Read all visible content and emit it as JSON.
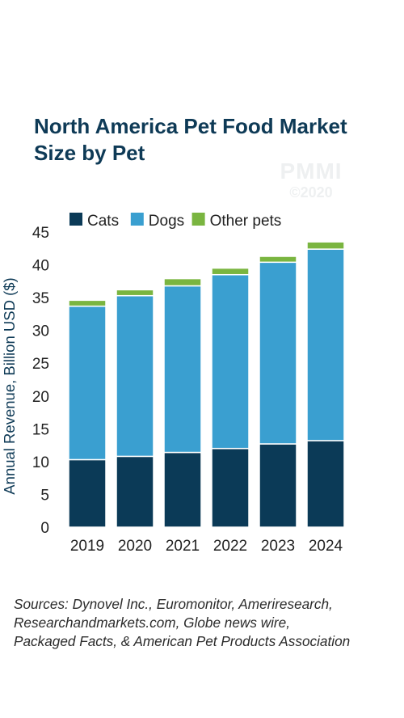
{
  "header": {
    "title_line1": "North America Pet Food Market",
    "title_line2": "Size by Pet"
  },
  "watermark": {
    "logo": "PMMI",
    "year": "©2020"
  },
  "colors": {
    "title": "#0e3a56",
    "cats": "#0b3a57",
    "dogs": "#3a9fd0",
    "other_pets": "#7ab540",
    "axis_text": "#222222",
    "ylabel": "#0e3a56"
  },
  "chart_data": {
    "type": "bar",
    "stacked": true,
    "categories": [
      "2019",
      "2020",
      "2021",
      "2022",
      "2023",
      "2024"
    ],
    "series": [
      {
        "name": "Cats",
        "values": [
          10.3,
          10.8,
          11.4,
          12.0,
          12.7,
          13.2
        ]
      },
      {
        "name": "Dogs",
        "values": [
          23.4,
          24.5,
          25.4,
          26.5,
          27.7,
          29.2
        ]
      },
      {
        "name": "Other pets",
        "values": [
          0.9,
          0.9,
          1.1,
          1.0,
          0.9,
          1.1
        ]
      }
    ],
    "ylabel": "Annual Revenue, Billion USD ($)",
    "ylim": [
      0,
      45
    ],
    "yticks": [
      "0",
      "5",
      "10",
      "15",
      "20",
      "25",
      "30",
      "35",
      "40",
      "45"
    ],
    "grid": false,
    "legend_position": "top"
  },
  "footer": {
    "sources_line1": "Sources: Dynovel Inc., Euromonitor, Ameriresearch,",
    "sources_line2": "Researchandmarkets.com, Globe news wire,",
    "sources_line3": "Packaged Facts, & American Pet Products Association"
  }
}
